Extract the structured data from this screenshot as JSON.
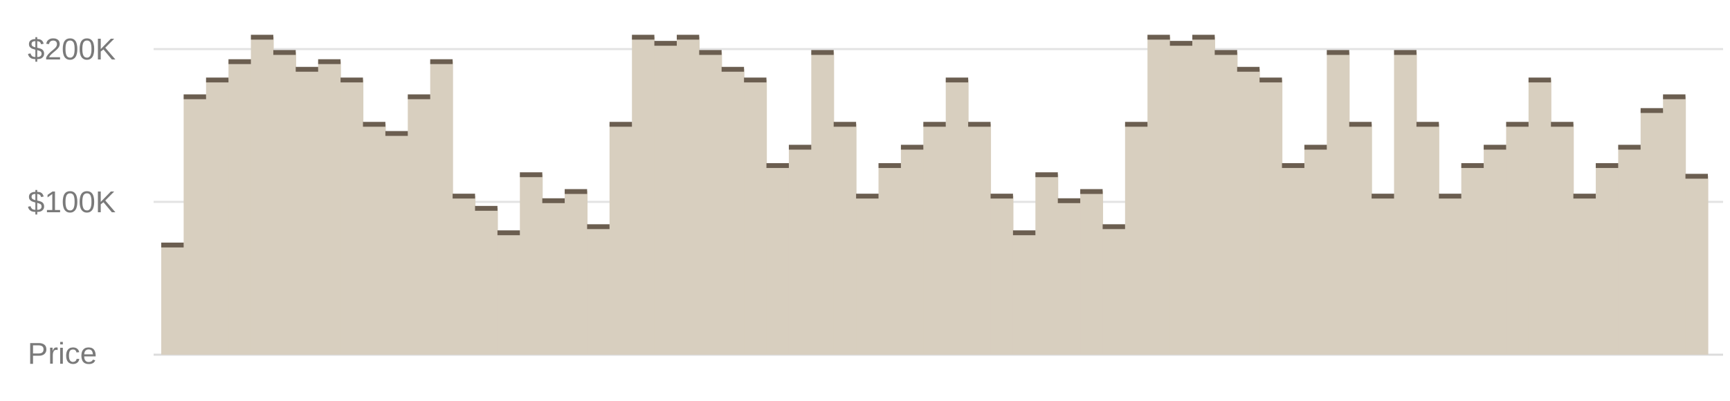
{
  "chart_data": {
    "type": "bar",
    "style": "step-histogram",
    "ylabel": "Price",
    "yticks": [
      {
        "value": 100000,
        "label": "$100K"
      },
      {
        "value": 200000,
        "label": "$200K"
      }
    ],
    "ylim": [
      0,
      200000
    ],
    "grid": true,
    "series": [
      {
        "values": [
          72000,
          169000,
          180000,
          192000,
          208000,
          198000,
          187000,
          192000,
          180000,
          151000,
          145000,
          169000,
          192000,
          104000,
          96000,
          80000,
          118000,
          101000,
          107000,
          84000,
          151000,
          208000,
          204000,
          208000,
          198000,
          187000,
          180000,
          124000,
          136000,
          198000,
          151000,
          104000,
          124000,
          136000,
          151000,
          180000,
          151000,
          104000,
          80000,
          118000,
          101000,
          107000,
          84000,
          151000,
          208000,
          204000,
          208000,
          198000,
          187000,
          180000,
          124000,
          136000,
          198000,
          151000,
          104000,
          198000,
          151000,
          104000,
          124000,
          136000,
          151000,
          180000,
          151000,
          104000,
          124000,
          136000,
          160000,
          169000,
          117000
        ]
      }
    ],
    "colors": {
      "fill": "#d8cfbf",
      "cap": "#6b5e50",
      "grid": "#e3e3e3",
      "baseline": "#dcdcdc",
      "text": "#7a7a7a"
    }
  }
}
